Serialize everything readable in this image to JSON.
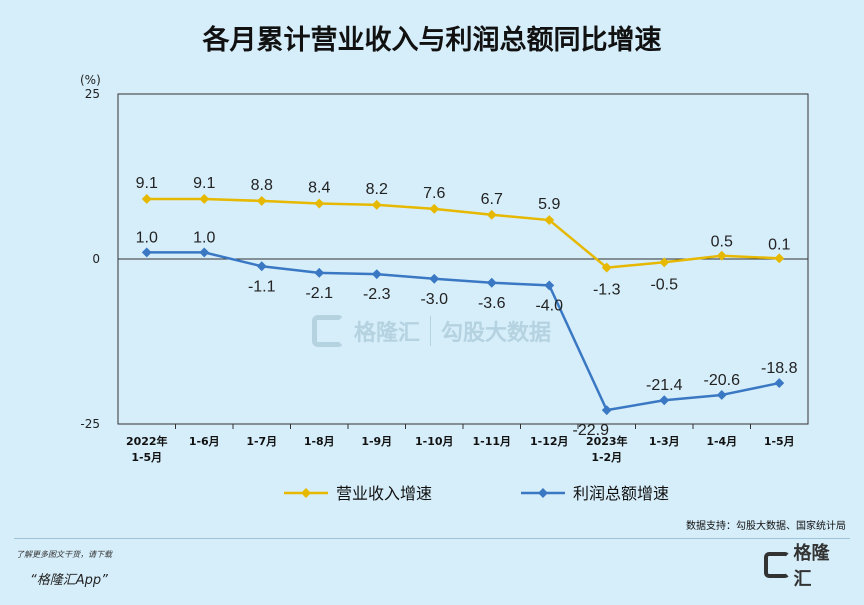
{
  "title": "各月累计营业收入与利润总额同比增速",
  "chart_data": {
    "type": "line",
    "title": "各月累计营业收入与利润总额同比增速",
    "unit_label": "(%)",
    "ylim": [
      -25,
      25
    ],
    "y_ticks": [
      "25",
      "0",
      "-25"
    ],
    "grid": false,
    "legend_position": "bottom",
    "categories": [
      [
        "2022年",
        "1-5月"
      ],
      [
        "1-6月"
      ],
      [
        "1-7月"
      ],
      [
        "1-8月"
      ],
      [
        "1-9月"
      ],
      [
        "1-10月"
      ],
      [
        "1-11月"
      ],
      [
        "1-12月"
      ],
      [
        "2023年",
        "1-2月"
      ],
      [
        "1-3月"
      ],
      [
        "1-4月"
      ],
      [
        "1-5月"
      ]
    ],
    "series": [
      {
        "name": "营业收入增速",
        "color": "#e6b800",
        "values": [
          9.1,
          9.1,
          8.8,
          8.4,
          8.2,
          7.6,
          6.7,
          5.9,
          -1.3,
          -0.5,
          0.5,
          0.1
        ],
        "labels": [
          "9.1",
          "9.1",
          "8.8",
          "8.4",
          "8.2",
          "7.6",
          "6.7",
          "5.9",
          "-1.3",
          "-0.5",
          "0.5",
          "0.1"
        ]
      },
      {
        "name": "利润总额增速",
        "color": "#3b78c4",
        "values": [
          1.0,
          1.0,
          -1.1,
          -2.1,
          -2.3,
          -3.0,
          -3.6,
          -4.0,
          -22.9,
          -21.4,
          -20.6,
          -18.8
        ],
        "labels": [
          "1.0",
          "1.0",
          "-1.1",
          "-2.1",
          "-2.3",
          "-3.0",
          "-3.6",
          "-4.0",
          "-22.9",
          "-21.4",
          "-20.6",
          "-18.8"
        ]
      }
    ]
  },
  "source_note": "数据支持：勾股大数据、国家统计局",
  "watermark": {
    "left": "格隆汇",
    "right": "勾股大数据"
  },
  "footer": {
    "hint": "了解更多图文干货，请下载",
    "app": "“格隆汇App”",
    "logo": "格隆汇"
  }
}
